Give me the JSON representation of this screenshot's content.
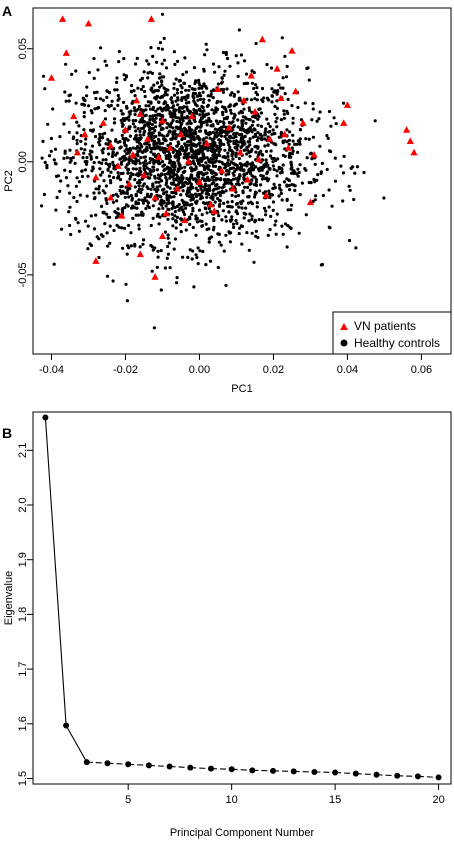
{
  "chart_data": [
    {
      "panel": "A",
      "type": "scatter",
      "xlabel": "PC1",
      "ylabel": "PC2",
      "xlim": [
        -0.045,
        0.068
      ],
      "ylim": [
        -0.085,
        0.068
      ],
      "xticks": [
        -0.04,
        -0.02,
        0.0,
        0.02,
        0.04,
        0.06
      ],
      "xtick_labels": [
        "-0.04",
        "-0.02",
        "0.00",
        "0.02",
        "0.04",
        "0.06"
      ],
      "yticks": [
        -0.05,
        0.0,
        0.05
      ],
      "ytick_labels": [
        "-0.05",
        "0.00",
        "0.05"
      ],
      "legend_placement": "bottom-right",
      "series": [
        {
          "name": "VN patients",
          "marker": "triangle",
          "color": "#ff0000",
          "points": [
            [
              -0.037,
              0.063
            ],
            [
              -0.036,
              0.048
            ],
            [
              -0.04,
              0.037
            ],
            [
              -0.03,
              0.061
            ],
            [
              -0.013,
              0.063
            ],
            [
              -0.034,
              0.02
            ],
            [
              -0.031,
              0.012
            ],
            [
              -0.033,
              0.004
            ],
            [
              -0.028,
              -0.007
            ],
            [
              -0.026,
              0.017
            ],
            [
              -0.024,
              0.007
            ],
            [
              -0.022,
              -0.002
            ],
            [
              -0.02,
              0.014
            ],
            [
              -0.019,
              -0.01
            ],
            [
              -0.018,
              0.003
            ],
            [
              -0.016,
              0.021
            ],
            [
              -0.015,
              -0.006
            ],
            [
              -0.014,
              0.01
            ],
            [
              -0.012,
              -0.016
            ],
            [
              -0.011,
              0.002
            ],
            [
              -0.01,
              0.018
            ],
            [
              -0.009,
              -0.023
            ],
            [
              -0.008,
              0.006
            ],
            [
              -0.006,
              -0.012
            ],
            [
              -0.005,
              0.012
            ],
            [
              -0.004,
              -0.026
            ],
            [
              -0.003,
              0.0
            ],
            [
              -0.002,
              0.02
            ],
            [
              0.0,
              -0.009
            ],
            [
              0.002,
              0.008
            ],
            [
              0.003,
              -0.019
            ],
            [
              0.005,
              0.032
            ],
            [
              0.006,
              -0.004
            ],
            [
              0.008,
              0.015
            ],
            [
              0.009,
              -0.012
            ],
            [
              0.011,
              0.004
            ],
            [
              0.012,
              0.027
            ],
            [
              0.013,
              -0.008
            ],
            [
              0.015,
              0.022
            ],
            [
              0.016,
              0.001
            ],
            [
              0.017,
              0.054
            ],
            [
              0.018,
              -0.015
            ],
            [
              0.019,
              0.01
            ],
            [
              0.021,
              0.041
            ],
            [
              0.022,
              0.028
            ],
            [
              0.024,
              0.006
            ],
            [
              0.025,
              0.049
            ],
            [
              0.026,
              0.031
            ],
            [
              0.028,
              0.017
            ],
            [
              0.03,
              -0.018
            ],
            [
              0.031,
              0.003
            ],
            [
              0.04,
              0.025
            ],
            [
              0.039,
              0.017
            ],
            [
              0.056,
              0.014
            ],
            [
              0.058,
              0.004
            ],
            [
              0.057,
              0.009
            ],
            [
              -0.028,
              -0.044
            ],
            [
              -0.016,
              -0.041
            ],
            [
              -0.012,
              -0.051
            ],
            [
              -0.021,
              -0.024
            ],
            [
              -0.01,
              -0.033
            ],
            [
              0.004,
              -0.022
            ],
            [
              -0.017,
              0.027
            ],
            [
              -0.024,
              -0.016
            ],
            [
              0.014,
              0.038
            ],
            [
              0.023,
              0.012
            ]
          ]
        },
        {
          "name": "Healthy controls",
          "marker": "circle",
          "color": "#000000",
          "n_points": 2600,
          "center": [
            -0.003,
            0.003
          ],
          "spread": [
            0.016,
            0.019
          ]
        }
      ]
    },
    {
      "panel": "B",
      "type": "line",
      "xlabel": "Principal Component Number",
      "ylabel": "Eigenvalue",
      "xlim": [
        0.4,
        20.6
      ],
      "ylim": [
        1.49,
        2.17
      ],
      "xticks": [
        5,
        10,
        15,
        20
      ],
      "xtick_labels": [
        "5",
        "10",
        "15",
        "20"
      ],
      "yticks": [
        1.5,
        1.6,
        1.7,
        1.8,
        1.9,
        2.0,
        2.1
      ],
      "ytick_labels": [
        "1.5",
        "1.6",
        "1.7",
        "1.8",
        "1.9",
        "2.0",
        "2.1"
      ],
      "series": [
        {
          "x": [
            1,
            2,
            3,
            4,
            5,
            6,
            7,
            8,
            9,
            10,
            11,
            12,
            13,
            14,
            15,
            16,
            17,
            18,
            19,
            20
          ],
          "values": [
            2.16,
            1.597,
            1.53,
            1.528,
            1.526,
            1.524,
            1.522,
            1.52,
            1.518,
            1.517,
            1.515,
            1.514,
            1.513,
            1.512,
            1.511,
            1.509,
            1.507,
            1.505,
            1.504,
            1.502
          ]
        }
      ]
    }
  ]
}
